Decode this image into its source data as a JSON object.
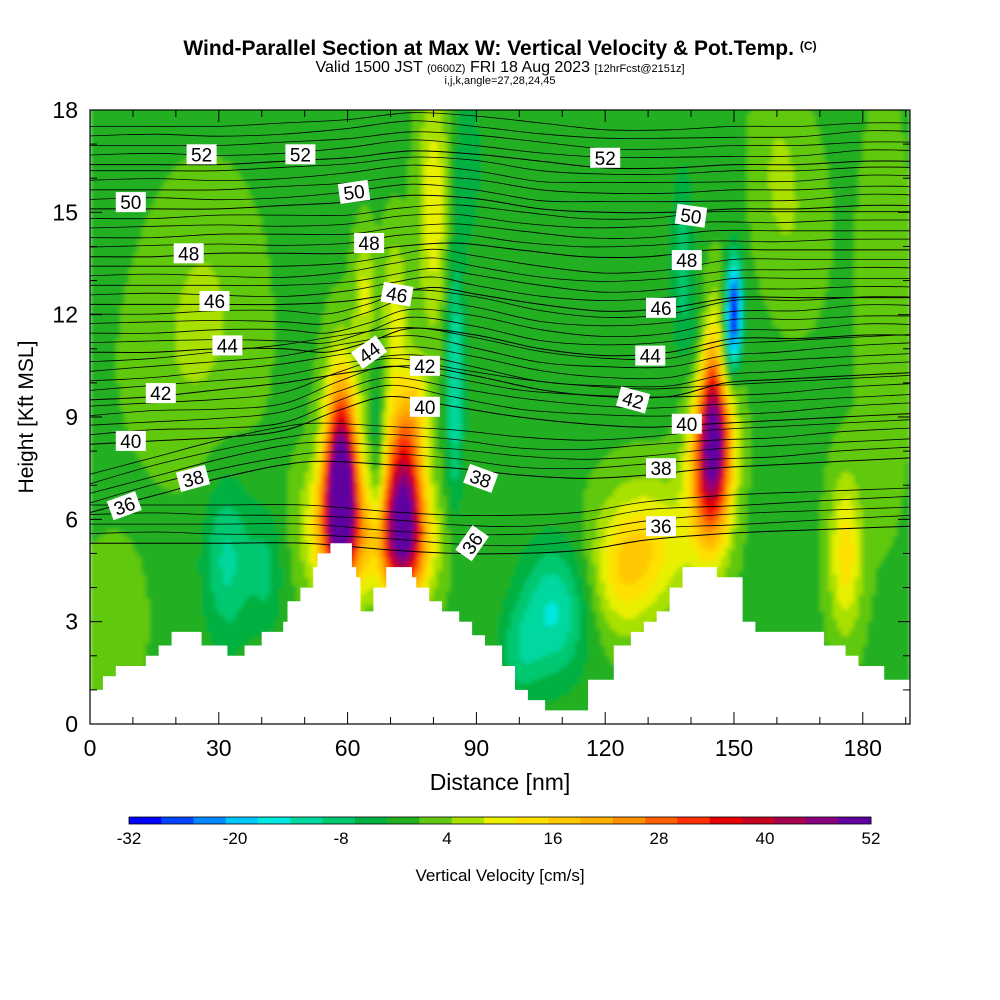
{
  "header": {
    "title": "Wind-Parallel Section at Max W: Vertical Velocity & Pot.Temp.",
    "title_mark": "(C)",
    "subtitle_valid": "Valid 1500 JST",
    "subtitle_utc": "(0600Z)",
    "subtitle_date": "FRI 18 Aug 2023",
    "subtitle_fcst": "[12hrFcst@2151z]",
    "indices": "i,j,k,angle=27,28,24,45"
  },
  "chart_data": {
    "type": "heatmap",
    "title": "Wind-Parallel Section at Max W: Vertical Velocity & Pot.Temp.",
    "xlabel": "Distance [nm]",
    "ylabel": "Height [Kft MSL]",
    "xlim": [
      0,
      191
    ],
    "ylim": [
      0,
      18
    ],
    "x_ticks": [
      0,
      30,
      60,
      90,
      120,
      150,
      180
    ],
    "y_ticks": [
      0,
      3,
      6,
      9,
      12,
      15,
      18
    ],
    "colorbar": {
      "label": "Vertical Velocity [cm/s]",
      "tick_labels": [
        "-32",
        "-20",
        "-8",
        "4",
        "16",
        "28",
        "40",
        "52"
      ],
      "range": [
        -32,
        52
      ],
      "colors": [
        "#0000ff",
        "#0044ff",
        "#0088ff",
        "#00c8ff",
        "#00e8e0",
        "#00d8a0",
        "#00c870",
        "#00b040",
        "#20b020",
        "#60c810",
        "#a8e000",
        "#e8f000",
        "#ffe000",
        "#ffc800",
        "#ffb000",
        "#ff9000",
        "#ff6000",
        "#ff3000",
        "#e80000",
        "#c80020",
        "#a80050",
        "#880080",
        "#6000a0"
      ]
    },
    "terrain_kft": [
      [
        0,
        1.0
      ],
      [
        3,
        1.0
      ],
      [
        3,
        1.4
      ],
      [
        6,
        1.4
      ],
      [
        6,
        1.7
      ],
      [
        13,
        1.7
      ],
      [
        13,
        2.0
      ],
      [
        16,
        2.0
      ],
      [
        16,
        2.3
      ],
      [
        19,
        2.3
      ],
      [
        19,
        2.7
      ],
      [
        26,
        2.7
      ],
      [
        26,
        2.3
      ],
      [
        32,
        2.3
      ],
      [
        32,
        2.0
      ],
      [
        36,
        2.0
      ],
      [
        36,
        2.3
      ],
      [
        40,
        2.3
      ],
      [
        40,
        2.7
      ],
      [
        45,
        2.7
      ],
      [
        45,
        3.0
      ],
      [
        46,
        3.0
      ],
      [
        46,
        3.6
      ],
      [
        49,
        3.6
      ],
      [
        49,
        4.0
      ],
      [
        52,
        4.0
      ],
      [
        52,
        4.6
      ],
      [
        53,
        4.6
      ],
      [
        53,
        5.0
      ],
      [
        56,
        5.0
      ],
      [
        56,
        5.3
      ],
      [
        61,
        5.3
      ],
      [
        61,
        4.6
      ],
      [
        62,
        4.6
      ],
      [
        62,
        4.3
      ],
      [
        63,
        4.3
      ],
      [
        63,
        3.3
      ],
      [
        66,
        3.3
      ],
      [
        66,
        4.0
      ],
      [
        69,
        4.0
      ],
      [
        69,
        4.6
      ],
      [
        75,
        4.6
      ],
      [
        75,
        4.3
      ],
      [
        76,
        4.3
      ],
      [
        76,
        4.0
      ],
      [
        79,
        4.0
      ],
      [
        79,
        3.6
      ],
      [
        82,
        3.6
      ],
      [
        82,
        3.3
      ],
      [
        86,
        3.3
      ],
      [
        86,
        3.0
      ],
      [
        89,
        3.0
      ],
      [
        89,
        2.6
      ],
      [
        92,
        2.6
      ],
      [
        92,
        2.3
      ],
      [
        96,
        2.3
      ],
      [
        96,
        1.7
      ],
      [
        99,
        1.7
      ],
      [
        99,
        1.0
      ],
      [
        102,
        1.0
      ],
      [
        102,
        0.7
      ],
      [
        106,
        0.7
      ],
      [
        106,
        0.4
      ],
      [
        116,
        0.4
      ],
      [
        116,
        1.3
      ],
      [
        122,
        1.3
      ],
      [
        122,
        2.3
      ],
      [
        126,
        2.3
      ],
      [
        126,
        2.7
      ],
      [
        129,
        2.7
      ],
      [
        129,
        3.0
      ],
      [
        132,
        3.0
      ],
      [
        132,
        3.3
      ],
      [
        135,
        3.3
      ],
      [
        135,
        4.0
      ],
      [
        138,
        4.0
      ],
      [
        138,
        4.6
      ],
      [
        146,
        4.6
      ],
      [
        146,
        4.3
      ],
      [
        152,
        4.3
      ],
      [
        152,
        3.0
      ],
      [
        155,
        3.0
      ],
      [
        155,
        2.7
      ],
      [
        171,
        2.7
      ],
      [
        171,
        2.3
      ],
      [
        176,
        2.3
      ],
      [
        176,
        2.0
      ],
      [
        179,
        2.0
      ],
      [
        179,
        1.7
      ],
      [
        185,
        1.7
      ],
      [
        185,
        1.3
      ],
      [
        191,
        1.3
      ]
    ],
    "w_field": {
      "units": "cm/s",
      "background": 0,
      "features": [
        {
          "x": 58.5,
          "z": 7.2,
          "sx": 2.6,
          "sz": 2.0,
          "w": 54
        },
        {
          "x": 57.5,
          "z": 5.8,
          "sx": 5.0,
          "sz": 1.3,
          "w": 22
        },
        {
          "x": 73,
          "z": 6.6,
          "sx": 3.2,
          "sz": 1.9,
          "w": 44
        },
        {
          "x": 72,
          "z": 5.3,
          "sx": 5.8,
          "sz": 1.1,
          "w": 20
        },
        {
          "x": 76,
          "z": 9.4,
          "sx": 2.0,
          "sz": 0.9,
          "w": 8
        },
        {
          "x": 145.5,
          "z": 9.0,
          "sx": 2.8,
          "sz": 1.9,
          "w": 40
        },
        {
          "x": 144,
          "z": 7.3,
          "sx": 3.4,
          "sz": 1.6,
          "w": 24
        },
        {
          "x": 150,
          "z": 12.1,
          "sx": 1.3,
          "sz": 1.1,
          "w": -32
        },
        {
          "x": 148,
          "z": 10.5,
          "sx": 1.6,
          "sz": 1.0,
          "w": -14
        },
        {
          "x": 130,
          "z": 5.3,
          "sx": 7.5,
          "sz": 1.3,
          "w": 13
        },
        {
          "x": 124,
          "z": 4.2,
          "sx": 5.0,
          "sz": 1.2,
          "w": 9
        },
        {
          "x": 176,
          "z": 5.0,
          "sx": 2.6,
          "sz": 1.6,
          "w": 14
        },
        {
          "x": 108,
          "z": 3.3,
          "sx": 5.5,
          "sz": 1.4,
          "w": -14
        },
        {
          "x": 100,
          "z": 2.1,
          "sx": 3.5,
          "sz": 1.0,
          "w": -7
        },
        {
          "x": 32,
          "z": 4.8,
          "sx": 4.0,
          "sz": 1.7,
          "w": -11
        },
        {
          "x": 41,
          "z": 4.5,
          "sx": 2.8,
          "sz": 1.3,
          "w": -7
        },
        {
          "x": 85,
          "z": 10.2,
          "sx": 1.5,
          "sz": 2.6,
          "w": -14
        },
        {
          "x": 67,
          "z": 7.5,
          "sx": 1.2,
          "sz": 2.2,
          "w": -9
        },
        {
          "x": 80,
          "z": 15.2,
          "sx": 2.5,
          "sz": 2.6,
          "w": 11
        },
        {
          "x": 64,
          "z": 12.6,
          "sx": 1.8,
          "sz": 1.2,
          "w": 9
        },
        {
          "x": 71,
          "z": 12.0,
          "sx": 2.0,
          "sz": 1.6,
          "w": 10
        },
        {
          "x": 88,
          "z": 16.5,
          "sx": 2.2,
          "sz": 1.8,
          "w": -6
        },
        {
          "x": 138,
          "z": 13.5,
          "sx": 2.0,
          "sz": 2.0,
          "w": -8
        },
        {
          "x": 142,
          "z": 11.0,
          "sx": 2.0,
          "sz": 1.3,
          "w": -7
        },
        {
          "x": 24,
          "z": 10.5,
          "sx": 10.0,
          "sz": 2.2,
          "w": 4
        },
        {
          "x": 27,
          "z": 13.5,
          "sx": 8.0,
          "sz": 2.0,
          "w": 3
        },
        {
          "x": 185,
          "z": 12.0,
          "sx": 4.0,
          "sz": 4.0,
          "w": 4
        },
        {
          "x": 165,
          "z": 14.5,
          "sx": 5.0,
          "sz": 2.0,
          "w": 3
        },
        {
          "x": 160,
          "z": 16.5,
          "sx": 4.0,
          "sz": 2.0,
          "w": 4
        },
        {
          "x": 5,
          "z": 3.0,
          "sx": 5.0,
          "sz": 1.5,
          "w": 4
        }
      ]
    },
    "theta_contours": [
      {
        "label": "36",
        "points": [
          [
            0,
            5.3
          ],
          [
            15,
            5.3
          ],
          [
            30,
            5.3
          ],
          [
            50,
            5.3
          ],
          [
            70,
            5.1
          ],
          [
            85,
            5.0
          ],
          [
            100,
            5.0
          ],
          [
            115,
            5.1
          ],
          [
            130,
            5.4
          ],
          [
            150,
            5.6
          ],
          [
            170,
            5.7
          ],
          [
            191,
            5.8
          ]
        ]
      },
      {
        "label": "38",
        "points": [
          [
            0,
            6.2
          ],
          [
            15,
            6.7
          ],
          [
            30,
            7.2
          ],
          [
            45,
            7.6
          ],
          [
            55,
            7.7
          ],
          [
            70,
            7.6
          ],
          [
            85,
            7.5
          ],
          [
            100,
            7.3
          ],
          [
            115,
            7.2
          ],
          [
            130,
            7.3
          ],
          [
            145,
            7.5
          ],
          [
            160,
            7.6
          ],
          [
            175,
            7.7
          ],
          [
            191,
            7.8
          ]
        ]
      },
      {
        "label": "40",
        "points": [
          [
            0,
            8.2
          ],
          [
            15,
            8.3
          ],
          [
            30,
            8.4
          ],
          [
            45,
            8.6
          ],
          [
            58,
            9.2
          ],
          [
            70,
            9.6
          ],
          [
            85,
            9.3
          ],
          [
            100,
            9.0
          ],
          [
            115,
            8.8
          ],
          [
            130,
            8.7
          ],
          [
            145,
            8.8
          ],
          [
            160,
            8.9
          ],
          [
            175,
            9.0
          ],
          [
            191,
            9.1
          ]
        ]
      },
      {
        "label": "42",
        "points": [
          [
            0,
            9.5
          ],
          [
            15,
            9.6
          ],
          [
            30,
            9.8
          ],
          [
            45,
            10.0
          ],
          [
            60,
            10.3
          ],
          [
            75,
            10.5
          ],
          [
            90,
            10.2
          ],
          [
            105,
            9.8
          ],
          [
            120,
            9.6
          ],
          [
            135,
            9.6
          ],
          [
            148,
            10.0
          ],
          [
            160,
            10.1
          ],
          [
            175,
            10.2
          ],
          [
            191,
            10.3
          ]
        ]
      },
      {
        "label": "44",
        "points": [
          [
            0,
            10.9
          ],
          [
            15,
            10.9
          ],
          [
            30,
            11.0
          ],
          [
            45,
            11.0
          ],
          [
            55,
            10.9
          ],
          [
            65,
            11.2
          ],
          [
            75,
            11.6
          ],
          [
            90,
            11.4
          ],
          [
            105,
            11.0
          ],
          [
            120,
            10.8
          ],
          [
            135,
            10.9
          ],
          [
            150,
            11.3
          ],
          [
            165,
            11.3
          ],
          [
            180,
            11.4
          ],
          [
            191,
            11.4
          ]
        ]
      },
      {
        "label": "46",
        "points": [
          [
            0,
            12.3
          ],
          [
            15,
            12.3
          ],
          [
            30,
            12.3
          ],
          [
            45,
            12.3
          ],
          [
            60,
            12.4
          ],
          [
            70,
            12.6
          ],
          [
            80,
            12.8
          ],
          [
            90,
            12.6
          ],
          [
            105,
            12.3
          ],
          [
            120,
            12.1
          ],
          [
            135,
            12.2
          ],
          [
            150,
            12.5
          ],
          [
            165,
            12.5
          ],
          [
            180,
            12.5
          ],
          [
            191,
            12.5
          ]
        ]
      },
      {
        "label": "48",
        "points": [
          [
            0,
            13.7
          ],
          [
            15,
            13.7
          ],
          [
            30,
            13.8
          ],
          [
            45,
            13.8
          ],
          [
            60,
            13.8
          ],
          [
            72,
            14.0
          ],
          [
            85,
            14.1
          ],
          [
            100,
            13.9
          ],
          [
            115,
            13.7
          ],
          [
            130,
            13.7
          ],
          [
            145,
            13.9
          ],
          [
            160,
            13.9
          ],
          [
            175,
            13.9
          ],
          [
            191,
            13.9
          ]
        ]
      },
      {
        "label": "50",
        "points": [
          [
            0,
            15.1
          ],
          [
            15,
            15.1
          ],
          [
            30,
            15.1
          ],
          [
            45,
            15.2
          ],
          [
            60,
            15.3
          ],
          [
            75,
            15.5
          ],
          [
            90,
            15.4
          ],
          [
            105,
            15.1
          ],
          [
            120,
            15.0
          ],
          [
            135,
            15.0
          ],
          [
            150,
            15.1
          ],
          [
            165,
            15.1
          ],
          [
            180,
            15.2
          ],
          [
            191,
            15.2
          ]
        ]
      },
      {
        "label": "52",
        "points": [
          [
            0,
            16.4
          ],
          [
            15,
            16.4
          ],
          [
            30,
            16.4
          ],
          [
            45,
            16.5
          ],
          [
            60,
            16.6
          ],
          [
            75,
            16.8
          ],
          [
            90,
            16.7
          ],
          [
            105,
            16.5
          ],
          [
            120,
            16.3
          ],
          [
            135,
            16.3
          ],
          [
            150,
            16.4
          ],
          [
            165,
            16.4
          ],
          [
            180,
            16.5
          ],
          [
            191,
            16.5
          ]
        ]
      }
    ],
    "contour_labels": [
      {
        "text": "36",
        "x": 8,
        "z": 6.4,
        "rot": -20
      },
      {
        "text": "38",
        "x": 24,
        "z": 7.2,
        "rot": -15
      },
      {
        "text": "40",
        "x": 9.5,
        "z": 8.3,
        "rot": 0
      },
      {
        "text": "42",
        "x": 16.5,
        "z": 9.7,
        "rot": 0
      },
      {
        "text": "44",
        "x": 32,
        "z": 11.1,
        "rot": 0
      },
      {
        "text": "46",
        "x": 29,
        "z": 12.4,
        "rot": 0
      },
      {
        "text": "48",
        "x": 23,
        "z": 13.8,
        "rot": 0
      },
      {
        "text": "50",
        "x": 9.5,
        "z": 15.3,
        "rot": 0
      },
      {
        "text": "52",
        "x": 26,
        "z": 16.7,
        "rot": 0
      },
      {
        "text": "52",
        "x": 49,
        "z": 16.7,
        "rot": 0
      },
      {
        "text": "50",
        "x": 61.5,
        "z": 15.6,
        "rot": -8
      },
      {
        "text": "48",
        "x": 65,
        "z": 14.1,
        "rot": 0
      },
      {
        "text": "46",
        "x": 71.5,
        "z": 12.6,
        "rot": 10
      },
      {
        "text": "44",
        "x": 65,
        "z": 10.9,
        "rot": -35
      },
      {
        "text": "42",
        "x": 78,
        "z": 10.5,
        "rot": 0
      },
      {
        "text": "40",
        "x": 78,
        "z": 9.3,
        "rot": 0
      },
      {
        "text": "38",
        "x": 91,
        "z": 7.2,
        "rot": 20
      },
      {
        "text": "36",
        "x": 89,
        "z": 5.3,
        "rot": -55
      },
      {
        "text": "52",
        "x": 120,
        "z": 16.6,
        "rot": 0
      },
      {
        "text": "50",
        "x": 140,
        "z": 14.9,
        "rot": 8
      },
      {
        "text": "48",
        "x": 139,
        "z": 13.6,
        "rot": 0
      },
      {
        "text": "46",
        "x": 133,
        "z": 12.2,
        "rot": 0
      },
      {
        "text": "44",
        "x": 130.5,
        "z": 10.8,
        "rot": 0
      },
      {
        "text": "42",
        "x": 126.5,
        "z": 9.5,
        "rot": 15
      },
      {
        "text": "40",
        "x": 139,
        "z": 8.8,
        "rot": 0
      },
      {
        "text": "38",
        "x": 133,
        "z": 7.5,
        "rot": 0
      },
      {
        "text": "36",
        "x": 133,
        "z": 5.8,
        "rot": 0
      }
    ]
  }
}
